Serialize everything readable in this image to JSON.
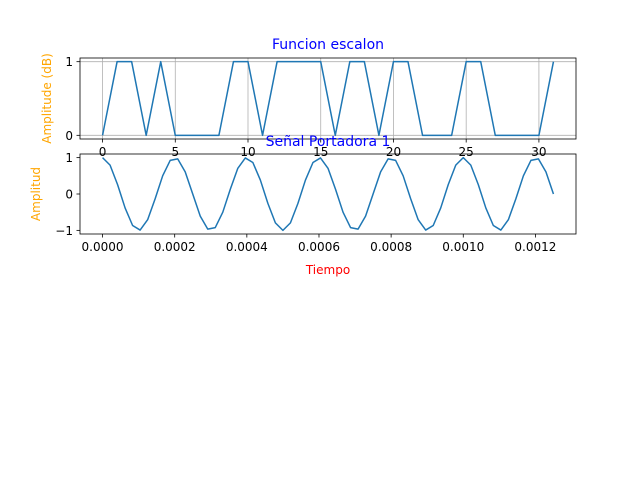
{
  "chart_data": [
    {
      "type": "line",
      "title": "Funcion escalon",
      "xlabel": "",
      "ylabel": "Amplitude (dB)",
      "title_color": "#0000ff",
      "ylabel_color": "#ffa500",
      "line_color": "#1f77b4",
      "grid": true,
      "xlim": [
        -1.55,
        32.55
      ],
      "ylim": [
        -0.05,
        1.05
      ],
      "xticks": [
        0,
        5,
        10,
        15,
        20,
        25,
        30
      ],
      "xtick_labels": [
        "0",
        "5",
        "10",
        "15",
        "20",
        "25",
        "30"
      ],
      "yticks": [
        0,
        1
      ],
      "ytick_labels": [
        "0",
        "1"
      ],
      "series": [
        {
          "x": [
            0,
            1,
            2,
            3,
            4,
            5,
            6,
            7,
            8,
            9,
            10,
            11,
            12,
            13,
            14,
            15,
            16,
            17,
            18,
            19,
            20,
            21,
            22,
            23,
            24,
            25,
            26,
            27,
            28,
            29,
            30,
            31
          ],
          "values": [
            0,
            1,
            1,
            0,
            1,
            0,
            0,
            0,
            0,
            1,
            1,
            0,
            1,
            1,
            1,
            1,
            0,
            1,
            1,
            0,
            1,
            1,
            0,
            0,
            0,
            1,
            1,
            0,
            0,
            0,
            0,
            1
          ]
        }
      ]
    },
    {
      "type": "line",
      "title": "Señal Portadora 1",
      "xlabel": "Tiempo",
      "ylabel": "Amplitud",
      "title_color": "#0000ff",
      "ylabel_color": "#ffa500",
      "xlabel_color": "#ff0000",
      "line_color": "#1f77b4",
      "grid": false,
      "xlim": [
        -6.25e-05,
        0.0013125
      ],
      "ylim": [
        -1.1,
        1.1
      ],
      "xticks": [
        0,
        0.0002,
        0.0004,
        0.0006,
        0.0008,
        0.001,
        0.0012
      ],
      "xtick_labels": [
        "0.0000",
        "0.0002",
        "0.0004",
        "0.0006",
        "0.0008",
        "0.0010",
        "0.0012"
      ],
      "yticks": [
        -1,
        0,
        1
      ],
      "ytick_labels": [
        "−1",
        "0",
        "1"
      ],
      "series": [
        {
          "samples": 61,
          "x_start": 0,
          "x_end": 0.00125,
          "amplitude": 1,
          "frequency_hz": 5000,
          "waveform": "cosine"
        }
      ]
    }
  ]
}
